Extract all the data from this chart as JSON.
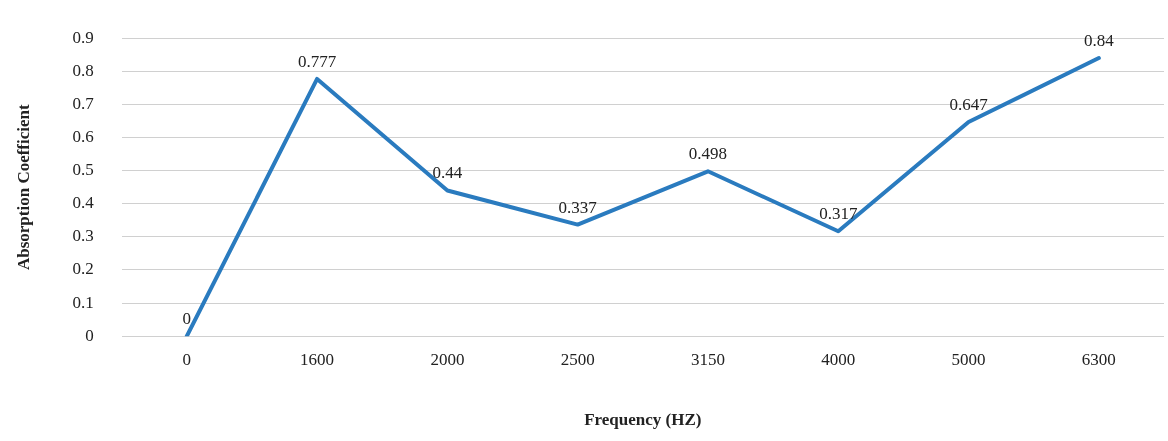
{
  "chart_data": {
    "type": "line",
    "xlabel": "Frequency (HZ)",
    "ylabel": "Absorption Coefficient",
    "categories": [
      "0",
      "1600",
      "2000",
      "2500",
      "3150",
      "4000",
      "5000",
      "6300"
    ],
    "series": [
      {
        "color": "#2a7bbf",
        "values": [
          0,
          0.777,
          0.44,
          0.337,
          0.498,
          0.317,
          0.647,
          0.84
        ]
      }
    ],
    "ylim": [
      0,
      0.9
    ],
    "yticks": [
      0,
      0.1,
      0.2,
      0.3,
      0.4,
      0.5,
      0.6,
      0.7,
      0.8,
      0.9
    ],
    "grid": "y",
    "legend": false,
    "marker": "none",
    "line_style": "solid",
    "data_labels": true
  }
}
